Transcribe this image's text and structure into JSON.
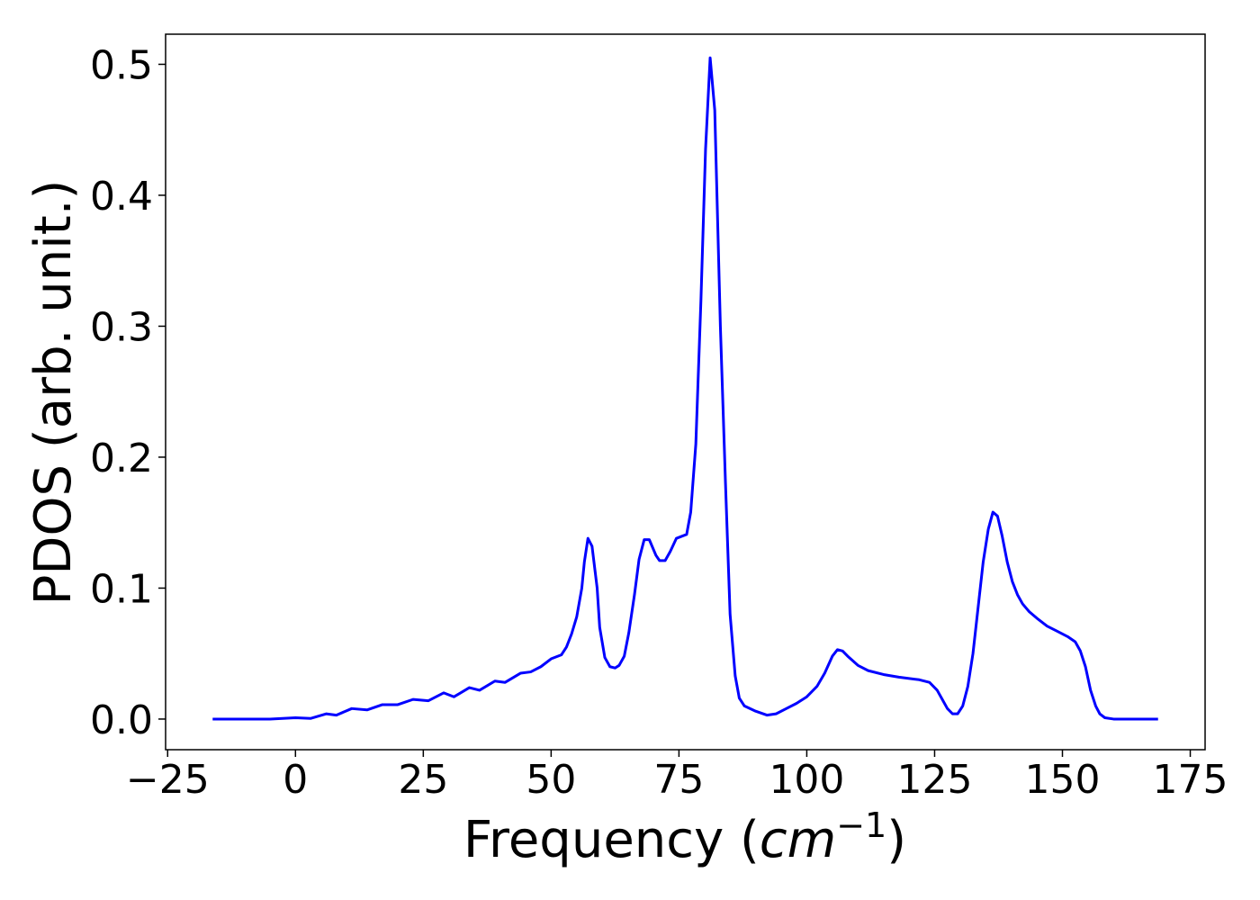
{
  "chart_data": {
    "type": "line",
    "xlabel": "Frequency (",
    "xlabel_italic": "cm",
    "xlabel_sup": "−1",
    "xlabel_end": ")",
    "ylabel": "PDOS (arb. unit.)",
    "xlim": [
      -25.4,
      177.9
    ],
    "ylim": [
      -0.0234,
      0.523
    ],
    "xticks": [
      {
        "value": -25,
        "label": "−25"
      },
      0,
      25,
      50,
      75,
      100,
      125,
      150,
      175
    ],
    "yticks": [
      {
        "value": 0,
        "label": "0.0"
      },
      0.1,
      0.2,
      0.3,
      0.4,
      0.5
    ],
    "grid": false,
    "series": [
      {
        "name": "PDOS",
        "color": "#0000ff",
        "x": [
          -16.2,
          -5,
          0,
          3,
          6,
          8,
          11,
          14,
          17,
          20,
          23,
          26,
          29,
          31,
          34,
          36,
          39,
          41,
          44,
          46,
          48,
          50,
          52,
          53,
          54,
          55,
          56,
          56.5,
          57.2,
          58,
          59,
          59.5,
          60.5,
          61.5,
          62.5,
          63.3,
          64.3,
          65.2,
          66.3,
          67.2,
          68.2,
          69.2,
          70.5,
          71.2,
          72.3,
          73.3,
          74.5,
          76.5,
          77.3,
          78.3,
          79.3,
          80.2,
          81.1,
          82.0,
          83.1,
          84.1,
          85.0,
          86.0,
          86.8,
          87.8,
          90,
          92.2,
          94,
          96,
          98,
          100,
          102,
          103.5,
          105,
          106,
          107,
          108,
          110,
          112,
          115,
          118,
          122,
          124,
          125.5,
          126.5,
          127.5,
          128.5,
          129.5,
          130.5,
          131.5,
          132.5,
          133.5,
          134.5,
          135.5,
          136.4,
          137.3,
          138.2,
          139.2,
          140.2,
          141.2,
          142.2,
          143.5,
          145,
          147,
          149,
          151,
          152.5,
          153.5,
          154.5,
          155.5,
          156.5,
          157.3,
          158.3,
          160,
          168.7
        ],
        "values": [
          0,
          0,
          0.001,
          0.0005,
          0.004,
          0.003,
          0.008,
          0.007,
          0.011,
          0.011,
          0.015,
          0.014,
          0.02,
          0.017,
          0.024,
          0.022,
          0.029,
          0.028,
          0.035,
          0.036,
          0.04,
          0.046,
          0.049,
          0.055,
          0.065,
          0.078,
          0.1,
          0.12,
          0.138,
          0.132,
          0.1,
          0.07,
          0.047,
          0.04,
          0.039,
          0.041,
          0.048,
          0.066,
          0.095,
          0.122,
          0.137,
          0.137,
          0.125,
          0.121,
          0.121,
          0.128,
          0.138,
          0.141,
          0.158,
          0.21,
          0.32,
          0.435,
          0.505,
          0.465,
          0.3,
          0.18,
          0.08,
          0.033,
          0.016,
          0.01,
          0.006,
          0.003,
          0.004,
          0.008,
          0.012,
          0.017,
          0.025,
          0.035,
          0.048,
          0.053,
          0.052,
          0.048,
          0.041,
          0.037,
          0.034,
          0.032,
          0.03,
          0.028,
          0.022,
          0.015,
          0.008,
          0.004,
          0.004,
          0.01,
          0.025,
          0.05,
          0.085,
          0.12,
          0.145,
          0.158,
          0.155,
          0.14,
          0.12,
          0.105,
          0.095,
          0.088,
          0.082,
          0.077,
          0.071,
          0.067,
          0.063,
          0.059,
          0.052,
          0.04,
          0.022,
          0.01,
          0.004,
          0.001,
          0,
          0
        ]
      }
    ]
  }
}
